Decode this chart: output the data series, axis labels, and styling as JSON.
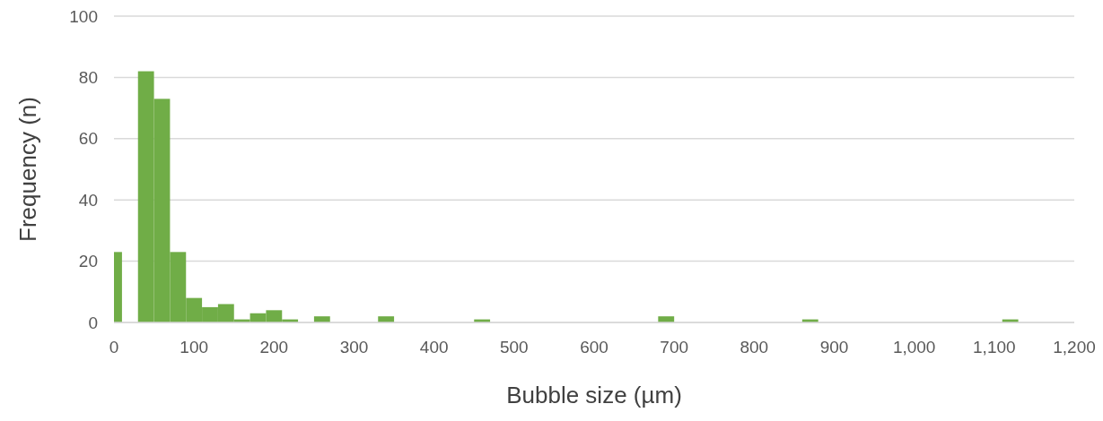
{
  "chart_data": {
    "type": "histogram",
    "xlabel": "Bubble size (µm)",
    "ylabel": "Frequency (n)",
    "bins": [
      0,
      10,
      30,
      50,
      70,
      90,
      110,
      130,
      150,
      170,
      190,
      210,
      230,
      250,
      270,
      330,
      350,
      450,
      470,
      680,
      700,
      860,
      880,
      1110,
      1130
    ],
    "values": [
      23,
      0,
      82,
      73,
      23,
      8,
      5,
      6,
      1,
      3,
      4,
      1,
      0,
      2,
      0,
      2,
      0,
      1,
      0,
      2,
      0,
      1,
      0,
      1
    ],
    "color": "#70ad47",
    "xlim": [
      0,
      1200
    ],
    "xticks": [
      0,
      100,
      200,
      300,
      400,
      500,
      600,
      700,
      800,
      900,
      {
        "value": 1000,
        "label": "1,000"
      },
      {
        "value": 1100,
        "label": "1,100"
      },
      {
        "value": 1200,
        "label": "1,200"
      }
    ],
    "ylim": [
      0,
      100
    ],
    "yticks": [
      0,
      20,
      40,
      60,
      80,
      100
    ],
    "grid": "y"
  }
}
